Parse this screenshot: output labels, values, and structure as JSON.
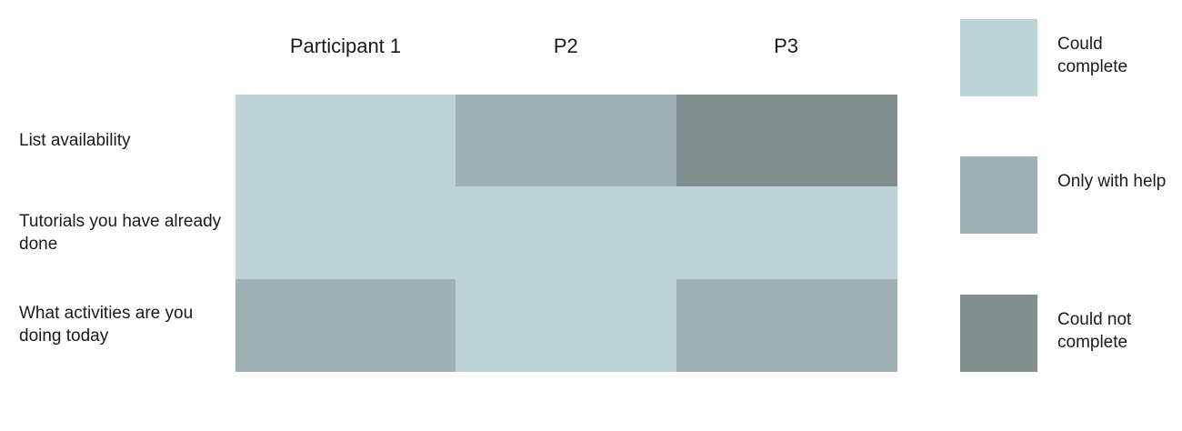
{
  "chart_data": {
    "type": "heatmap",
    "title": "",
    "columns": [
      "Participant 1",
      "P2",
      "P3"
    ],
    "rows": [
      "List availability",
      "Tutorials you have already done",
      "What activities are you doing today"
    ],
    "levels": [
      {
        "key": "could_complete",
        "label": "Could complete",
        "color": "#bed3d5"
      },
      {
        "key": "only_with_help",
        "label": "Only with help",
        "color": "#a0b1b4"
      },
      {
        "key": "could_not_complete",
        "label": "Could not complete",
        "color": "#818e8e"
      }
    ],
    "values": [
      [
        "could_complete",
        "only_with_help",
        "could_not_complete"
      ],
      [
        "could_complete",
        "could_complete",
        "could_complete"
      ],
      [
        "only_with_help",
        "could_complete",
        "only_with_help"
      ]
    ],
    "legend_position": "right"
  }
}
